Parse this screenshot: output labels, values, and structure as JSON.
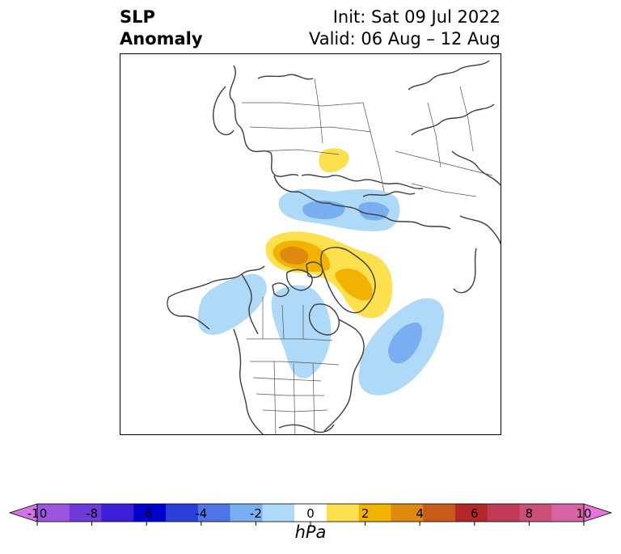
{
  "title": {
    "left_line1": "SLP",
    "left_line2": "Anomaly",
    "right_line1": "Init: Sat 09 Jul 2022",
    "right_line2": "Valid: 06 Aug – 12 Aug"
  },
  "colorbar": {
    "unit": "hPa",
    "ticks": [
      "-10",
      "-8",
      "-6",
      "-4",
      "-2",
      "0",
      "2",
      "4",
      "6",
      "8",
      "10"
    ],
    "colors": [
      "#d273e8",
      "#9d55e0",
      "#6d3ad8",
      "#3b1fd6",
      "#0000d0",
      "#2a3ed8",
      "#4e75e6",
      "#79aff0",
      "#aedaf8",
      "#ffffff",
      "#fde04d",
      "#f2b200",
      "#de8a0e",
      "#c85a1a",
      "#b2282a",
      "#c13a55",
      "#cb4f79",
      "#d863a6",
      "#e576d7"
    ],
    "extend": "both"
  },
  "map": {
    "projection": "north-polar-stereographic",
    "anomalies": [
      {
        "sign": "positive",
        "region": "Northern Russia / Kara Sea",
        "max_level": 2
      },
      {
        "sign": "negative",
        "region": "Barents Sea / Scandinavia north",
        "max_level": -4
      },
      {
        "sign": "positive",
        "region": "Arctic Ocean / Greenland",
        "max_level": 4
      },
      {
        "sign": "negative",
        "region": "North Pacific / Gulf of Alaska",
        "max_level": -2
      },
      {
        "sign": "negative",
        "region": "Central Canada / Great Lakes",
        "max_level": -2
      },
      {
        "sign": "negative",
        "region": "North Atlantic",
        "max_level": -4
      }
    ]
  }
}
